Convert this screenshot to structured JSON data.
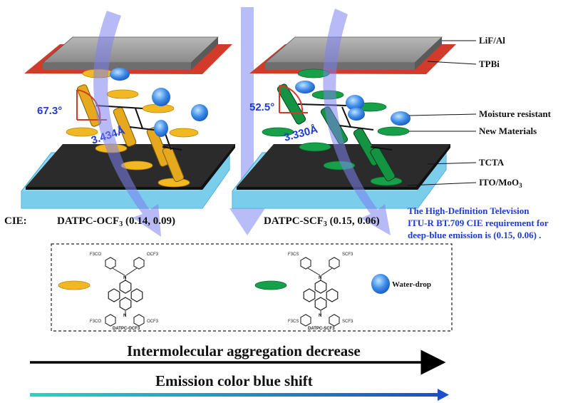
{
  "layers": {
    "cathode": "LiF/Al",
    "etl": "TPBi",
    "moisture": "Moisture resistant",
    "new_materials": "New Materials",
    "htl": "TCTA",
    "anode": "ITO/MoO",
    "anode_sub": "3"
  },
  "left": {
    "angle": "67.3°",
    "distance": "3.434Å",
    "cie_prefix": "CIE:",
    "cie_name": "DATPC-OCF",
    "cie_sub": "3",
    "cie_value": " (0.14, 0.09)"
  },
  "right": {
    "angle": "52.5°",
    "distance": "3.330Å",
    "cie_name": "DATPC-SCF",
    "cie_sub": "3",
    "cie_value": " (0.15, 0.06)"
  },
  "note": {
    "line1": "The High-Definition Television",
    "line2": "ITU-R BT.709 CIE requirement for",
    "line3": "deep-blue emission is (0.15, 0.06) ."
  },
  "legend": {
    "mol1_top_left": "F3CO",
    "mol1_top_right": "OCF3",
    "mol1_bottom_left": "F3CO",
    "mol1_bottom_right": "OCF3",
    "mol1_name": "DATPC-OCF3",
    "mol2_top_left": "F3CS",
    "mol2_top_right": "SCF3",
    "mol2_bottom_left": "F3CS",
    "mol2_bottom_right": "SCF3",
    "mol2_name": "DATPC-SCF3",
    "water_drop": "Water-drop"
  },
  "arrows": {
    "aggregation": "Intermolecular aggregation decrease",
    "blue_shift": "Emission color blue shift"
  },
  "colors": {
    "yellow": "#f2b824",
    "green": "#17a04a",
    "blue_arrow": "#8b91f2",
    "cyan_layer": "#7fd3ee",
    "dark_layer": "#2d2d2d",
    "red_layer": "#d23a2a",
    "note_blue": "#1f3bd6"
  }
}
